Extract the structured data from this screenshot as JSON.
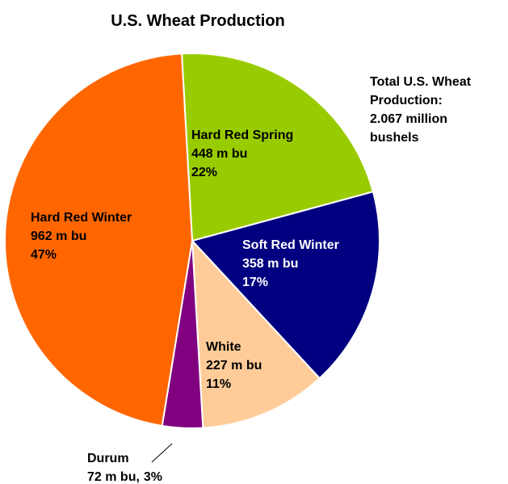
{
  "chart_data": {
    "type": "pie",
    "title": "U.S. Wheat Production",
    "categories": [
      "Hard Red Spring",
      "Soft Red Winter",
      "White",
      "Durum",
      "Hard Red Winter"
    ],
    "values": [
      448,
      358,
      227,
      72,
      962
    ],
    "value_labels": [
      "448 m bu",
      "358 m bu",
      "227 m bu",
      "72 m bu,",
      "962 m bu"
    ],
    "percents": [
      22,
      17,
      11,
      3,
      47
    ],
    "percent_labels": [
      "22%",
      "17%",
      "11%",
      "3%",
      "47%"
    ],
    "colors": [
      "#99cc00",
      "#000080",
      "#ffcc99",
      "#800080",
      "#ff6600"
    ],
    "annotation": [
      "Total U.S. Wheat",
      "Production:",
      "2.067 million",
      "bushels"
    ]
  }
}
